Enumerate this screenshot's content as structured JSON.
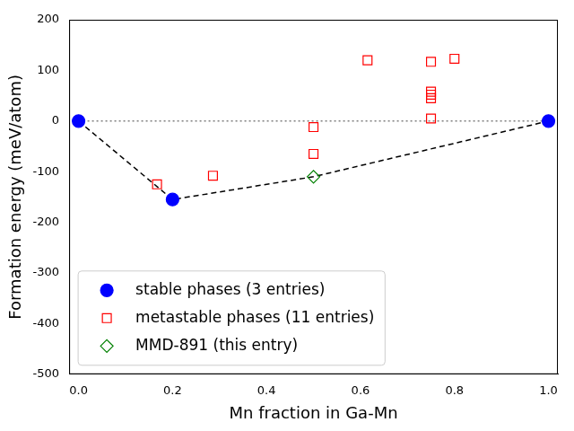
{
  "chart_data": {
    "type": "scatter",
    "x_label": "Mn fraction in Ga-Mn",
    "y_label": "Formation energy (meV/atom)",
    "xlim": [
      -0.02,
      1.02
    ],
    "ylim": [
      -500,
      200
    ],
    "xticks": [
      {
        "value": 0,
        "label": "0.0"
      },
      0.2,
      0.4,
      0.6,
      0.8,
      {
        "value": 1,
        "label": "1.0"
      }
    ],
    "yticks": [
      -500,
      -400,
      -300,
      -200,
      -100,
      0,
      100,
      200
    ],
    "grid": false,
    "legend": "lower left",
    "series": [
      {
        "type": "line",
        "color": "#808080",
        "line_style": "dotted",
        "x": [
          0,
          1
        ],
        "values": [
          0,
          0
        ]
      },
      {
        "type": "line",
        "color": "#000000",
        "line_style": "dashed",
        "x": [
          0,
          0.2,
          0.5,
          1
        ],
        "values": [
          0,
          -155,
          -110,
          0
        ]
      },
      {
        "name": "stable phases (3 entries)",
        "type": "scatter",
        "color": "#0000ff",
        "marker": "circle",
        "x": [
          0,
          0.2,
          1
        ],
        "values": [
          0,
          -155,
          0
        ]
      },
      {
        "name": "metastable phases (11 entries)",
        "type": "scatter",
        "color": "#ff0000",
        "marker": "open_square",
        "x": [
          0.167,
          0.286,
          0.5,
          0.5,
          0.615,
          0.75,
          0.75,
          0.75,
          0.75,
          0.75,
          0.8
        ],
        "values": [
          -125,
          -108,
          -12,
          -65,
          120,
          117,
          58,
          52,
          45,
          5,
          123
        ]
      },
      {
        "name": "MMD-891 (this entry)",
        "type": "scatter",
        "color": "#008000",
        "marker": "open_diamond",
        "x": [
          0.5
        ],
        "values": [
          -110
        ]
      }
    ]
  }
}
